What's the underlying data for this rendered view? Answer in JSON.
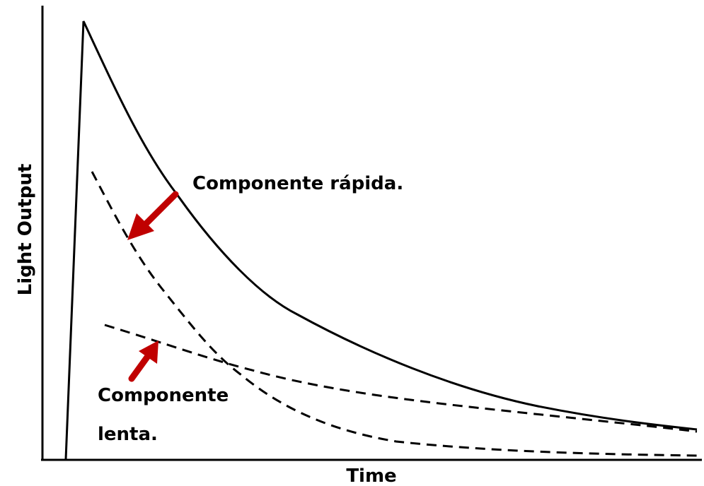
{
  "axes": {
    "y_label": "Light Output",
    "x_label": "Time"
  },
  "annotations": {
    "fast": "Componente rápida.",
    "slow": [
      "Componente",
      "lenta."
    ]
  }
}
